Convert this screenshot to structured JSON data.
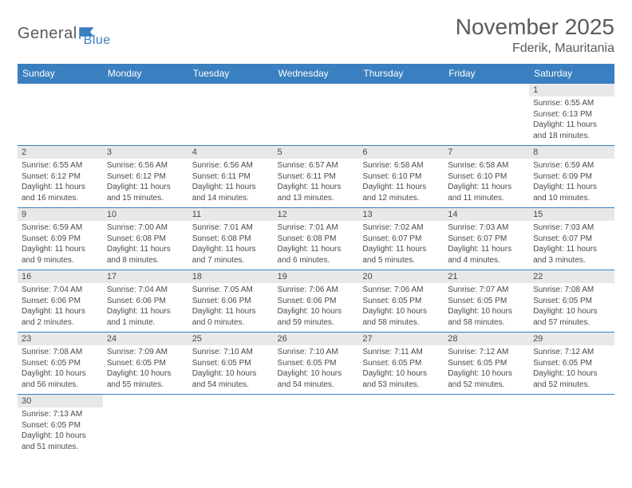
{
  "logo": {
    "text1": "General",
    "text2": "Blue"
  },
  "title": "November 2025",
  "location": "Fderik, Mauritania",
  "colors": {
    "header_bg": "#3a7fbf",
    "header_text": "#ffffff",
    "daynum_bg": "#e8e8e8",
    "text": "#4a4a4a",
    "title_text": "#5a5a5a",
    "border": "#3a7fbf"
  },
  "typography": {
    "title_fontsize": 28,
    "location_fontsize": 16,
    "dayheader_fontsize": 12,
    "daynum_fontsize": 11,
    "detail_fontsize": 10
  },
  "day_headers": [
    "Sunday",
    "Monday",
    "Tuesday",
    "Wednesday",
    "Thursday",
    "Friday",
    "Saturday"
  ],
  "weeks": [
    [
      {
        "n": "",
        "sr": "",
        "ss": "",
        "dl": ""
      },
      {
        "n": "",
        "sr": "",
        "ss": "",
        "dl": ""
      },
      {
        "n": "",
        "sr": "",
        "ss": "",
        "dl": ""
      },
      {
        "n": "",
        "sr": "",
        "ss": "",
        "dl": ""
      },
      {
        "n": "",
        "sr": "",
        "ss": "",
        "dl": ""
      },
      {
        "n": "",
        "sr": "",
        "ss": "",
        "dl": ""
      },
      {
        "n": "1",
        "sr": "Sunrise: 6:55 AM",
        "ss": "Sunset: 6:13 PM",
        "dl": "Daylight: 11 hours and 18 minutes."
      }
    ],
    [
      {
        "n": "2",
        "sr": "Sunrise: 6:55 AM",
        "ss": "Sunset: 6:12 PM",
        "dl": "Daylight: 11 hours and 16 minutes."
      },
      {
        "n": "3",
        "sr": "Sunrise: 6:56 AM",
        "ss": "Sunset: 6:12 PM",
        "dl": "Daylight: 11 hours and 15 minutes."
      },
      {
        "n": "4",
        "sr": "Sunrise: 6:56 AM",
        "ss": "Sunset: 6:11 PM",
        "dl": "Daylight: 11 hours and 14 minutes."
      },
      {
        "n": "5",
        "sr": "Sunrise: 6:57 AM",
        "ss": "Sunset: 6:11 PM",
        "dl": "Daylight: 11 hours and 13 minutes."
      },
      {
        "n": "6",
        "sr": "Sunrise: 6:58 AM",
        "ss": "Sunset: 6:10 PM",
        "dl": "Daylight: 11 hours and 12 minutes."
      },
      {
        "n": "7",
        "sr": "Sunrise: 6:58 AM",
        "ss": "Sunset: 6:10 PM",
        "dl": "Daylight: 11 hours and 11 minutes."
      },
      {
        "n": "8",
        "sr": "Sunrise: 6:59 AM",
        "ss": "Sunset: 6:09 PM",
        "dl": "Daylight: 11 hours and 10 minutes."
      }
    ],
    [
      {
        "n": "9",
        "sr": "Sunrise: 6:59 AM",
        "ss": "Sunset: 6:09 PM",
        "dl": "Daylight: 11 hours and 9 minutes."
      },
      {
        "n": "10",
        "sr": "Sunrise: 7:00 AM",
        "ss": "Sunset: 6:08 PM",
        "dl": "Daylight: 11 hours and 8 minutes."
      },
      {
        "n": "11",
        "sr": "Sunrise: 7:01 AM",
        "ss": "Sunset: 6:08 PM",
        "dl": "Daylight: 11 hours and 7 minutes."
      },
      {
        "n": "12",
        "sr": "Sunrise: 7:01 AM",
        "ss": "Sunset: 6:08 PM",
        "dl": "Daylight: 11 hours and 6 minutes."
      },
      {
        "n": "13",
        "sr": "Sunrise: 7:02 AM",
        "ss": "Sunset: 6:07 PM",
        "dl": "Daylight: 11 hours and 5 minutes."
      },
      {
        "n": "14",
        "sr": "Sunrise: 7:03 AM",
        "ss": "Sunset: 6:07 PM",
        "dl": "Daylight: 11 hours and 4 minutes."
      },
      {
        "n": "15",
        "sr": "Sunrise: 7:03 AM",
        "ss": "Sunset: 6:07 PM",
        "dl": "Daylight: 11 hours and 3 minutes."
      }
    ],
    [
      {
        "n": "16",
        "sr": "Sunrise: 7:04 AM",
        "ss": "Sunset: 6:06 PM",
        "dl": "Daylight: 11 hours and 2 minutes."
      },
      {
        "n": "17",
        "sr": "Sunrise: 7:04 AM",
        "ss": "Sunset: 6:06 PM",
        "dl": "Daylight: 11 hours and 1 minute."
      },
      {
        "n": "18",
        "sr": "Sunrise: 7:05 AM",
        "ss": "Sunset: 6:06 PM",
        "dl": "Daylight: 11 hours and 0 minutes."
      },
      {
        "n": "19",
        "sr": "Sunrise: 7:06 AM",
        "ss": "Sunset: 6:06 PM",
        "dl": "Daylight: 10 hours and 59 minutes."
      },
      {
        "n": "20",
        "sr": "Sunrise: 7:06 AM",
        "ss": "Sunset: 6:05 PM",
        "dl": "Daylight: 10 hours and 58 minutes."
      },
      {
        "n": "21",
        "sr": "Sunrise: 7:07 AM",
        "ss": "Sunset: 6:05 PM",
        "dl": "Daylight: 10 hours and 58 minutes."
      },
      {
        "n": "22",
        "sr": "Sunrise: 7:08 AM",
        "ss": "Sunset: 6:05 PM",
        "dl": "Daylight: 10 hours and 57 minutes."
      }
    ],
    [
      {
        "n": "23",
        "sr": "Sunrise: 7:08 AM",
        "ss": "Sunset: 6:05 PM",
        "dl": "Daylight: 10 hours and 56 minutes."
      },
      {
        "n": "24",
        "sr": "Sunrise: 7:09 AM",
        "ss": "Sunset: 6:05 PM",
        "dl": "Daylight: 10 hours and 55 minutes."
      },
      {
        "n": "25",
        "sr": "Sunrise: 7:10 AM",
        "ss": "Sunset: 6:05 PM",
        "dl": "Daylight: 10 hours and 54 minutes."
      },
      {
        "n": "26",
        "sr": "Sunrise: 7:10 AM",
        "ss": "Sunset: 6:05 PM",
        "dl": "Daylight: 10 hours and 54 minutes."
      },
      {
        "n": "27",
        "sr": "Sunrise: 7:11 AM",
        "ss": "Sunset: 6:05 PM",
        "dl": "Daylight: 10 hours and 53 minutes."
      },
      {
        "n": "28",
        "sr": "Sunrise: 7:12 AM",
        "ss": "Sunset: 6:05 PM",
        "dl": "Daylight: 10 hours and 52 minutes."
      },
      {
        "n": "29",
        "sr": "Sunrise: 7:12 AM",
        "ss": "Sunset: 6:05 PM",
        "dl": "Daylight: 10 hours and 52 minutes."
      }
    ],
    [
      {
        "n": "30",
        "sr": "Sunrise: 7:13 AM",
        "ss": "Sunset: 6:05 PM",
        "dl": "Daylight: 10 hours and 51 minutes."
      },
      {
        "n": "",
        "sr": "",
        "ss": "",
        "dl": ""
      },
      {
        "n": "",
        "sr": "",
        "ss": "",
        "dl": ""
      },
      {
        "n": "",
        "sr": "",
        "ss": "",
        "dl": ""
      },
      {
        "n": "",
        "sr": "",
        "ss": "",
        "dl": ""
      },
      {
        "n": "",
        "sr": "",
        "ss": "",
        "dl": ""
      },
      {
        "n": "",
        "sr": "",
        "ss": "",
        "dl": ""
      }
    ]
  ]
}
